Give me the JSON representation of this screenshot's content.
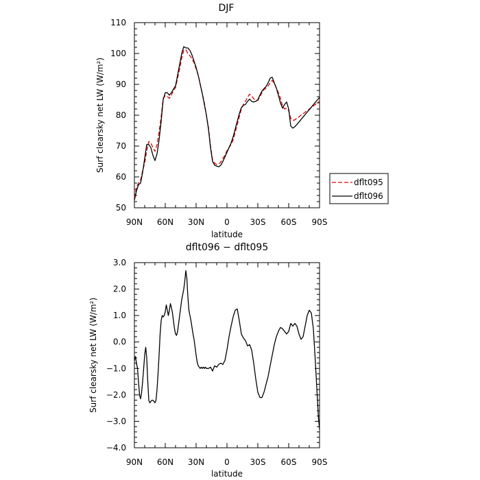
{
  "chart_data": [
    {
      "type": "line",
      "title": "DJF",
      "xlabel": "latitude",
      "ylabel": "Surf clearsky net LW (W/m²)",
      "xlim": [
        90,
        -90
      ],
      "ylim": [
        50,
        110
      ],
      "x_ticks": [
        90,
        60,
        30,
        0,
        -30,
        -60,
        -90
      ],
      "x_tick_labels": [
        "90N",
        "60N",
        "30N",
        "0",
        "30S",
        "60S",
        "90S"
      ],
      "y_ticks": [
        50,
        60,
        70,
        80,
        90,
        100,
        110
      ],
      "y_tick_labels": [
        "50",
        "60",
        "70",
        "80",
        "90",
        "100",
        "110"
      ],
      "legend_position": "outside-right",
      "series": [
        {
          "name": "dflt095",
          "color": "#e00000",
          "dash": "dashed",
          "x": [
            90,
            88,
            86,
            84,
            82,
            80,
            78,
            76,
            74,
            72,
            70,
            68,
            66,
            64,
            62,
            60,
            58,
            56,
            54,
            52,
            50,
            48,
            46,
            44,
            42,
            40,
            38,
            36,
            34,
            32,
            30,
            28,
            26,
            24,
            22,
            20,
            18,
            16,
            14,
            12,
            10,
            8,
            6,
            4,
            2,
            0,
            -2,
            -4,
            -6,
            -8,
            -10,
            -12,
            -14,
            -16,
            -18,
            -20,
            -22,
            -24,
            -26,
            -28,
            -30,
            -32,
            -34,
            -36,
            -38,
            -40,
            -42,
            -44,
            -46,
            -48,
            -50,
            -52,
            -54,
            -56,
            -58,
            -60,
            -62,
            -64,
            -66,
            -68,
            -70,
            -72,
            -74,
            -76,
            -78,
            -80,
            -82,
            -84,
            -86,
            -88,
            -90
          ],
          "y": [
            53.2,
            56.5,
            58.0,
            59.0,
            62.0,
            64.5,
            68.5,
            71.5,
            71.0,
            69.5,
            68.3,
            70.5,
            74.5,
            79.5,
            85.5,
            86.3,
            86.0,
            85.5,
            86.5,
            88.0,
            89.0,
            92.0,
            95.0,
            98.5,
            101.0,
            101.3,
            100.0,
            99.3,
            98.3,
            97.0,
            95.0,
            93.0,
            90.0,
            87.0,
            84.0,
            80.0,
            76.0,
            70.0,
            65.5,
            64.5,
            64.0,
            64.2,
            64.8,
            66.0,
            67.0,
            68.5,
            69.5,
            70.5,
            72.0,
            74.5,
            77.0,
            79.5,
            82.0,
            83.5,
            84.5,
            85.8,
            86.8,
            86.3,
            85.3,
            85.0,
            84.8,
            86.0,
            87.3,
            88.3,
            88.8,
            89.5,
            90.5,
            91.3,
            90.3,
            88.8,
            87.3,
            85.5,
            83.0,
            82.0,
            82.3,
            81.5,
            79.0,
            78.3,
            78.5,
            79.0,
            79.5,
            80.0,
            80.5,
            81.0,
            81.5,
            82.0,
            82.5,
            83.0,
            83.5,
            84.0,
            84.5
          ]
        },
        {
          "name": "dflt096",
          "color": "#000000",
          "dash": "solid",
          "x": [
            90,
            88,
            86,
            84,
            82,
            80,
            78,
            76,
            74,
            72,
            70,
            68,
            66,
            64,
            62,
            60,
            58,
            56,
            54,
            52,
            50,
            48,
            46,
            44,
            42,
            40,
            38,
            36,
            34,
            32,
            30,
            28,
            26,
            24,
            22,
            20,
            18,
            16,
            14,
            12,
            10,
            8,
            6,
            4,
            2,
            0,
            -2,
            -4,
            -6,
            -8,
            -10,
            -12,
            -14,
            -16,
            -18,
            -20,
            -22,
            -24,
            -26,
            -28,
            -30,
            -32,
            -34,
            -36,
            -38,
            -40,
            -42,
            -44,
            -46,
            -48,
            -50,
            -52,
            -54,
            -56,
            -58,
            -60,
            -62,
            -64,
            -66,
            -68,
            -70,
            -72,
            -74,
            -76,
            -78,
            -80,
            -82,
            -84,
            -86,
            -88,
            -90
          ],
          "y": [
            52.5,
            55.5,
            57.5,
            58.0,
            61.5,
            66.0,
            70.5,
            70.5,
            69.5,
            67.0,
            65.3,
            67.5,
            72.0,
            78.0,
            85.0,
            87.3,
            87.3,
            86.5,
            87.3,
            88.5,
            89.5,
            93.0,
            96.5,
            100.0,
            102.2,
            101.8,
            101.8,
            101.0,
            99.5,
            97.5,
            95.5,
            93.0,
            90.0,
            87.0,
            83.5,
            80.0,
            75.5,
            69.5,
            65.0,
            63.8,
            63.5,
            63.3,
            63.8,
            65.0,
            66.5,
            68.0,
            69.5,
            71.0,
            73.0,
            75.5,
            78.0,
            80.5,
            82.5,
            83.2,
            83.5,
            84.5,
            85.2,
            84.5,
            84.3,
            84.5,
            85.0,
            86.5,
            87.8,
            88.6,
            89.3,
            90.5,
            92.0,
            92.3,
            90.5,
            88.8,
            86.5,
            84.0,
            82.3,
            83.5,
            84.3,
            82.0,
            76.5,
            75.8,
            76.3,
            77.0,
            77.8,
            78.6,
            79.4,
            80.2,
            81.0,
            81.8,
            82.6,
            83.4,
            84.2,
            85.0,
            85.8
          ]
        }
      ]
    },
    {
      "type": "line",
      "title": "dflt096 − dflt095",
      "xlabel": "latitude",
      "ylabel": "Surf clearsky net LW (W/m²)",
      "xlim": [
        90,
        -90
      ],
      "ylim": [
        -4.0,
        3.0
      ],
      "x_ticks": [
        90,
        60,
        30,
        0,
        -30,
        -60,
        -90
      ],
      "x_tick_labels": [
        "90N",
        "60N",
        "30N",
        "0",
        "30S",
        "60S",
        "90S"
      ],
      "y_ticks": [
        -4.0,
        -3.0,
        -2.0,
        -1.0,
        0.0,
        1.0,
        2.0,
        3.0
      ],
      "y_tick_labels": [
        "−4.0",
        "−3.0",
        "−2.0",
        "−1.0",
        "0.0",
        "1.0",
        "2.0",
        "3.0"
      ],
      "series": [
        {
          "color": "#000000",
          "dash": "solid",
          "x": [
            90,
            89,
            88,
            87,
            86,
            85,
            84,
            83,
            82,
            81,
            80,
            79,
            78,
            77,
            76,
            75,
            74,
            73,
            72,
            71,
            70,
            69,
            68,
            67,
            66,
            65,
            64,
            63,
            62,
            61,
            60,
            59,
            58,
            57,
            56,
            55,
            54,
            53,
            52,
            51,
            50,
            49,
            48,
            47,
            46,
            45,
            44,
            43,
            42,
            41,
            40,
            39,
            38,
            37,
            36,
            35,
            34,
            33,
            32,
            31,
            30,
            29,
            28,
            27,
            26,
            25,
            24,
            23,
            22,
            21,
            20,
            18,
            16,
            14,
            12,
            10,
            8,
            6,
            4,
            2,
            0,
            -2,
            -4,
            -6,
            -8,
            -10,
            -12,
            -14,
            -16,
            -18,
            -20,
            -22,
            -24,
            -26,
            -28,
            -30,
            -32,
            -34,
            -36,
            -38,
            -40,
            -42,
            -44,
            -46,
            -48,
            -50,
            -52,
            -54,
            -56,
            -58,
            -60,
            -62,
            -64,
            -66,
            -68,
            -70,
            -72,
            -74,
            -76,
            -78,
            -80,
            -82,
            -84,
            -86,
            -88,
            -89,
            -90
          ],
          "y": [
            -0.7,
            -0.55,
            -0.8,
            -1.0,
            -1.5,
            -2.0,
            -2.15,
            -1.9,
            -1.5,
            -1.0,
            -0.5,
            -0.2,
            -0.6,
            -1.5,
            -2.2,
            -2.3,
            -2.25,
            -2.2,
            -2.2,
            -2.25,
            -2.3,
            -2.2,
            -1.8,
            -1.2,
            -0.5,
            0.3,
            0.8,
            1.0,
            0.95,
            1.0,
            1.15,
            1.4,
            1.2,
            1.0,
            1.2,
            1.45,
            1.3,
            1.1,
            0.8,
            0.5,
            0.3,
            0.25,
            0.4,
            0.7,
            1.0,
            1.3,
            1.6,
            1.8,
            2.0,
            2.3,
            2.7,
            2.4,
            1.7,
            1.2,
            1.0,
            0.8,
            0.55,
            0.3,
            0.1,
            -0.2,
            -0.5,
            -0.75,
            -0.9,
            -0.95,
            -1.0,
            -0.95,
            -1.0,
            -0.95,
            -1.0,
            -0.95,
            -1.0,
            -1.0,
            -0.95,
            -1.1,
            -0.9,
            -0.95,
            -0.85,
            -0.8,
            -0.85,
            -0.7,
            -0.3,
            0.2,
            0.6,
            0.95,
            1.2,
            1.25,
            0.8,
            0.3,
            0.15,
            0.05,
            -0.15,
            -0.1,
            -0.3,
            -0.8,
            -1.4,
            -1.9,
            -2.1,
            -2.1,
            -1.9,
            -1.6,
            -1.3,
            -0.9,
            -0.5,
            -0.1,
            0.2,
            0.4,
            0.55,
            0.5,
            0.4,
            0.3,
            0.4,
            0.7,
            0.6,
            0.7,
            0.6,
            0.3,
            0.1,
            0.2,
            0.6,
            1.0,
            1.2,
            1.1,
            0.5,
            -0.8,
            -2.2,
            -2.9,
            -3.3
          ]
        }
      ]
    }
  ]
}
